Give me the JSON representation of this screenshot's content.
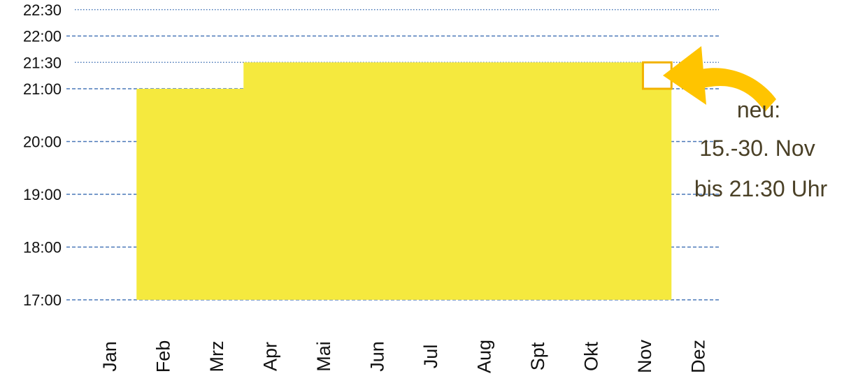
{
  "chart_data": {
    "type": "area",
    "title": "",
    "xlabel": "",
    "ylabel": "",
    "categories": [
      "Jan",
      "Feb",
      "Mrz",
      "Apr",
      "Mai",
      "Jun",
      "Jul",
      "Aug",
      "Spt",
      "Okt",
      "Nov",
      "Dez"
    ],
    "y_ticks": [
      "17:00",
      "18:00",
      "19:00",
      "20:00",
      "21:00",
      "21:30",
      "22:00",
      "22:30"
    ],
    "ylim": [
      "17:00",
      "22:30"
    ],
    "grid_dashed": [
      "17:00",
      "18:00",
      "19:00",
      "20:00",
      "21:00",
      "22:00"
    ],
    "grid_dotted": [
      "21:30",
      "22:30"
    ],
    "series": [
      {
        "start": "17:00",
        "segments": [
          {
            "from": "Feb",
            "to": "Apr",
            "end": "21:00"
          },
          {
            "from": "Apr",
            "to": "Nov 15",
            "end": "21:30"
          },
          {
            "from": "Nov 15",
            "to": "Dez",
            "end": "21:00"
          }
        ]
      }
    ],
    "highlight": {
      "from": "Nov 15",
      "to": "Dez",
      "range": [
        "21:00",
        "21:30"
      ]
    },
    "annotation": {
      "lines": [
        "neu:",
        "15.-30. Nov",
        "bis 21:30 Uhr"
      ]
    },
    "colors": {
      "fill": "#f5e93e",
      "grid": "#4a78b8",
      "highlight_border": "#f2b200",
      "arrow": "#ffc400",
      "annotation_text": "#4a4026"
    }
  }
}
